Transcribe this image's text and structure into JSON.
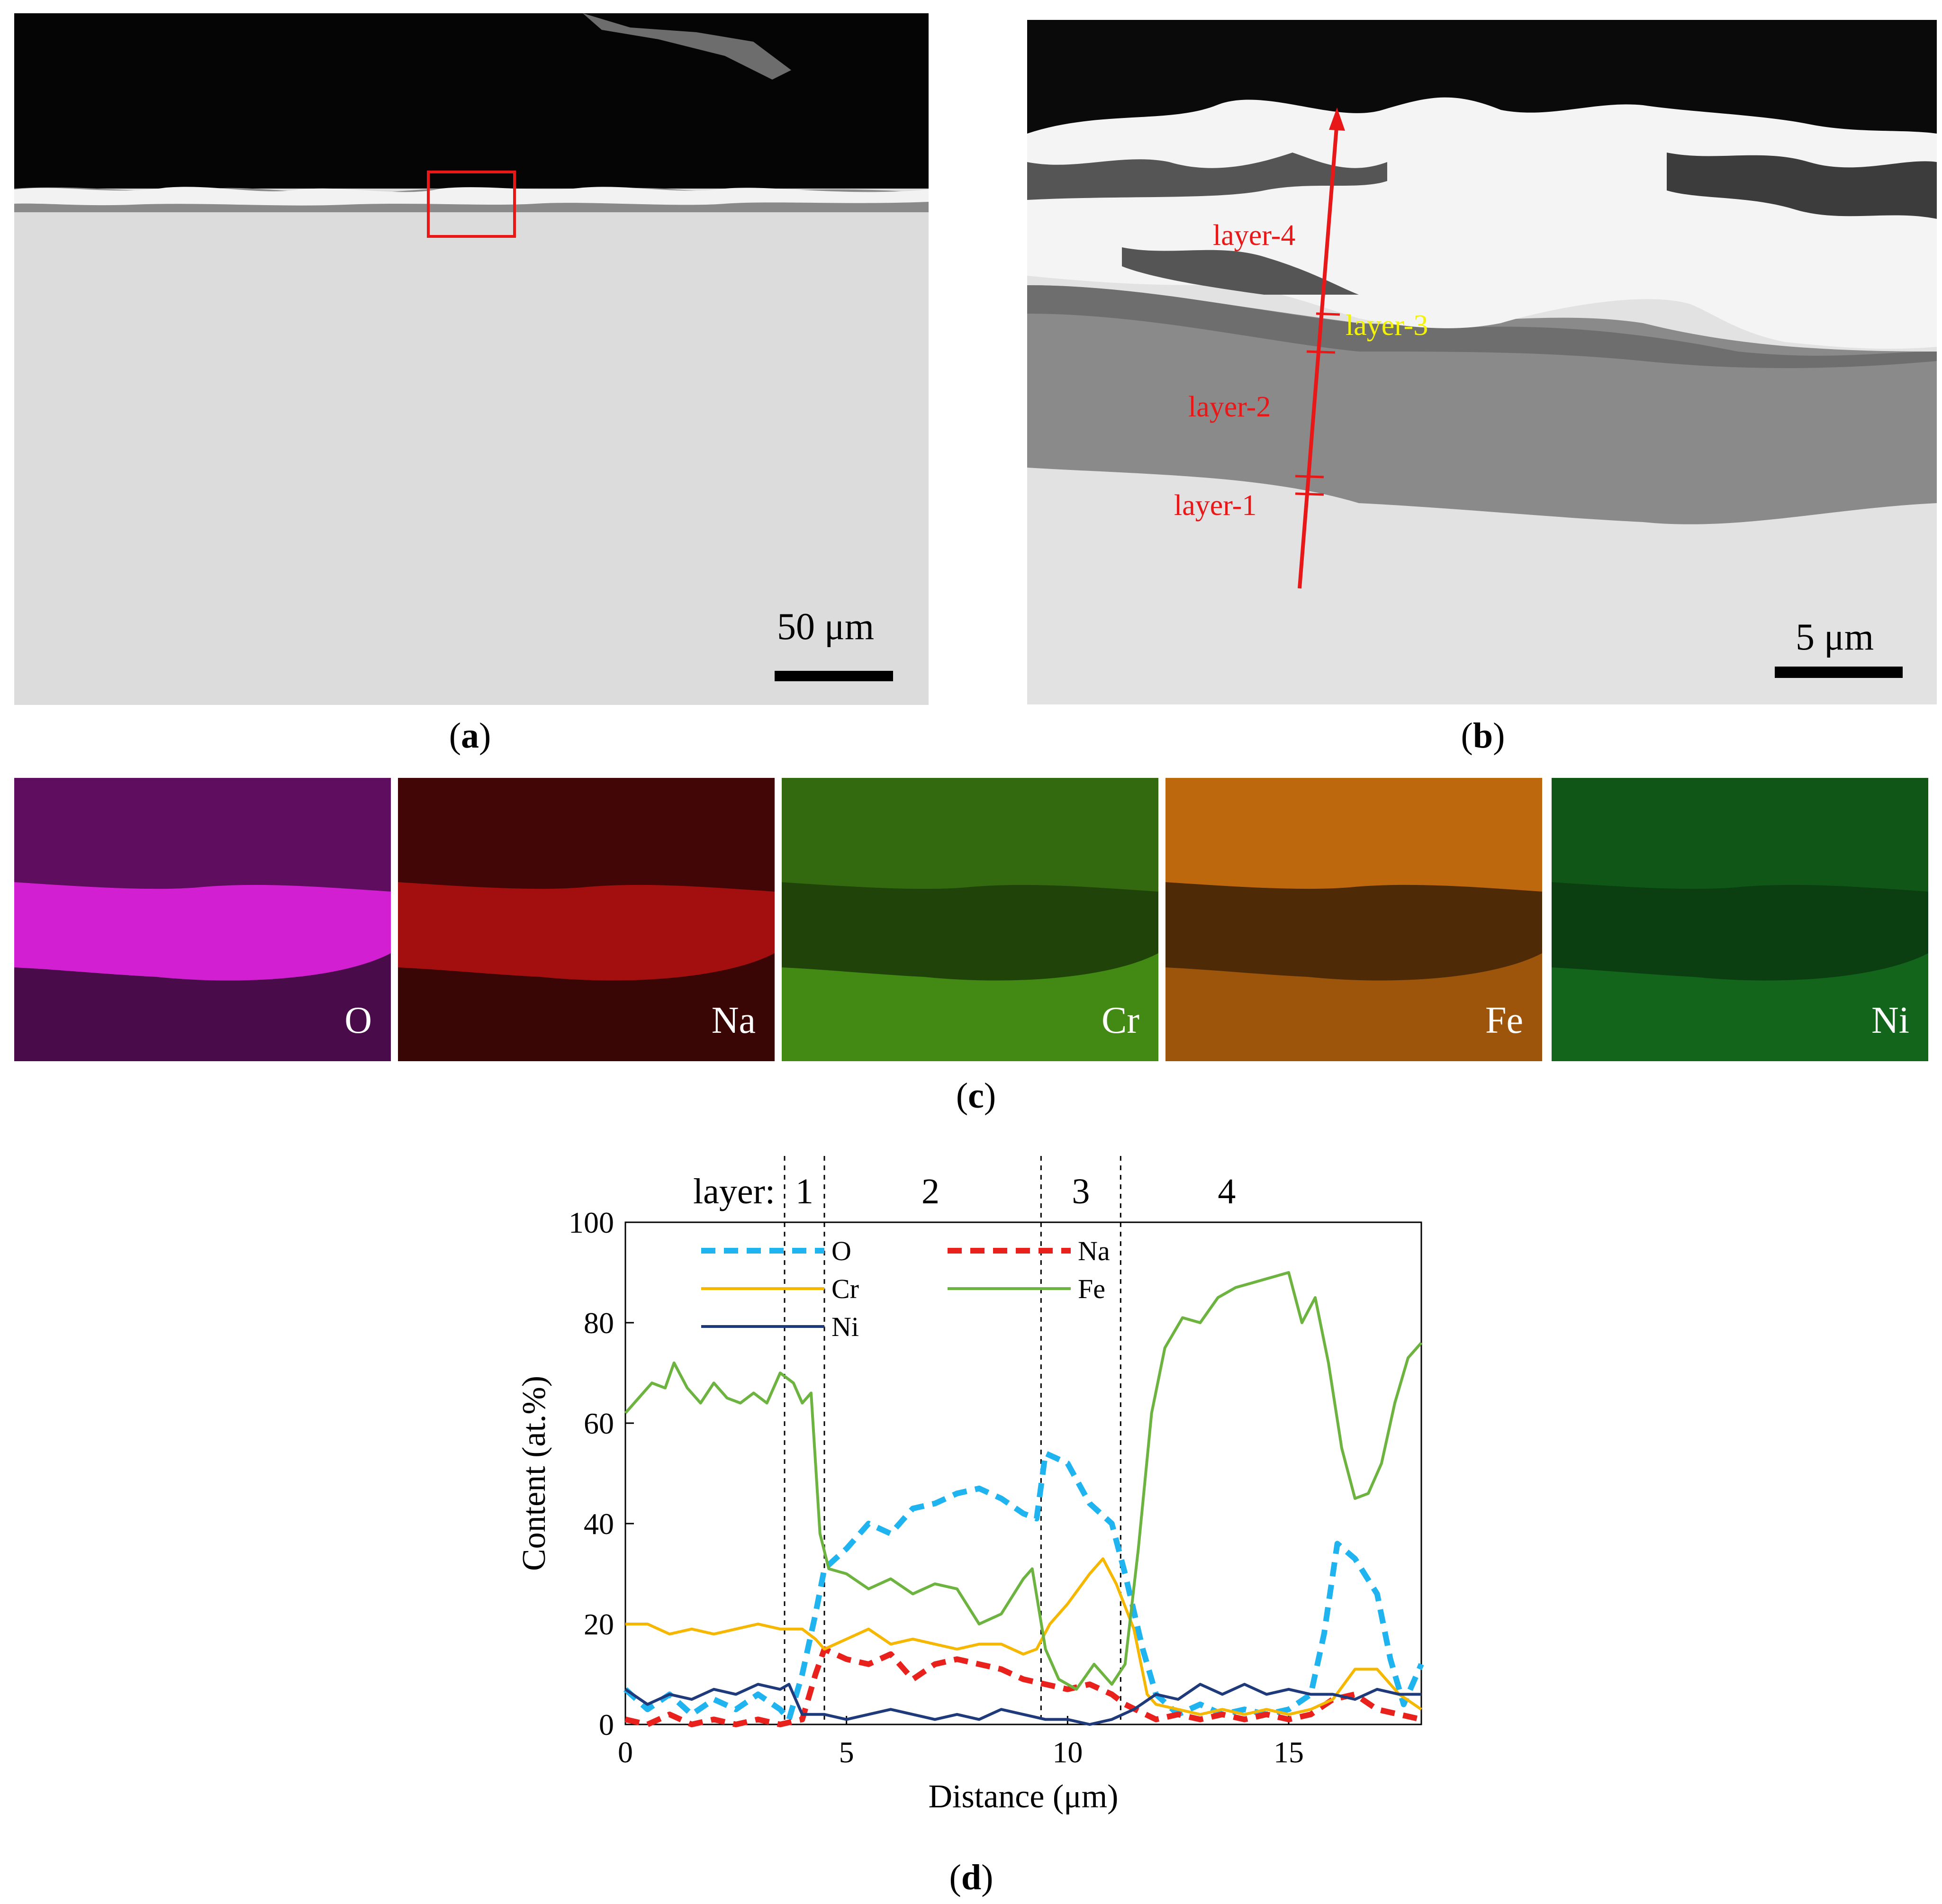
{
  "panel_a": {
    "scale_label": "50 μm",
    "caption_letter": "a"
  },
  "panel_b": {
    "scale_label": "5 μm",
    "caption_letter": "b",
    "layer_labels": [
      "layer-4",
      "layer-3",
      "layer-2",
      "layer-1"
    ]
  },
  "panel_c": {
    "caption_letter": "c",
    "maps": [
      {
        "element": "O",
        "color": "#d21fd2"
      },
      {
        "element": "Na",
        "color": "#c01010"
      },
      {
        "element": "Cr",
        "color": "#5cc01c"
      },
      {
        "element": "Fe",
        "color": "#e07a10"
      },
      {
        "element": "Ni",
        "color": "#1c9c2a"
      }
    ]
  },
  "panel_d": {
    "caption_letter": "d"
  },
  "chart_data": {
    "type": "line",
    "xlabel": "Distance (μm)",
    "ylabel": "Content (at.%)",
    "xlim": [
      0,
      18
    ],
    "ylim": [
      0,
      100
    ],
    "xticks": [
      0,
      5,
      10,
      15
    ],
    "yticks": [
      0,
      20,
      40,
      60,
      80,
      100
    ],
    "layer_prefix": "layer:",
    "layer_boundaries": [
      3.6,
      4.5,
      9.4,
      11.2
    ],
    "layer_labels": [
      {
        "label": "1",
        "x": 4.05
      },
      {
        "label": "2",
        "x": 6.9
      },
      {
        "label": "3",
        "x": 10.3
      },
      {
        "label": "4",
        "x": 13.6
      }
    ],
    "legend_placement": "top-left",
    "series": [
      {
        "name": "O",
        "color": "#1fb4f0",
        "dashed": true,
        "points": [
          [
            0,
            7
          ],
          [
            0.5,
            3
          ],
          [
            1,
            6
          ],
          [
            1.5,
            2
          ],
          [
            2,
            5
          ],
          [
            2.5,
            3
          ],
          [
            3,
            6
          ],
          [
            3.5,
            3
          ],
          [
            3.7,
            1
          ],
          [
            4,
            10
          ],
          [
            4.3,
            22
          ],
          [
            4.5,
            31
          ],
          [
            5,
            35
          ],
          [
            5.5,
            40
          ],
          [
            6,
            38
          ],
          [
            6.5,
            43
          ],
          [
            7,
            44
          ],
          [
            7.5,
            46
          ],
          [
            8,
            47
          ],
          [
            8.5,
            45
          ],
          [
            9,
            42
          ],
          [
            9.3,
            41
          ],
          [
            9.5,
            54
          ],
          [
            10,
            52
          ],
          [
            10.5,
            44
          ],
          [
            11,
            40
          ],
          [
            11.3,
            30
          ],
          [
            11.7,
            15
          ],
          [
            12,
            6
          ],
          [
            12.5,
            2
          ],
          [
            13,
            4
          ],
          [
            13.5,
            2
          ],
          [
            14,
            3
          ],
          [
            14.5,
            2
          ],
          [
            15,
            3
          ],
          [
            15.5,
            6
          ],
          [
            15.8,
            18
          ],
          [
            16.1,
            36
          ],
          [
            16.5,
            33
          ],
          [
            17,
            26
          ],
          [
            17.3,
            13
          ],
          [
            17.6,
            4
          ],
          [
            18,
            12
          ]
        ]
      },
      {
        "name": "Na",
        "color": "#e8211c",
        "dashed": true,
        "points": [
          [
            0,
            1
          ],
          [
            0.5,
            0
          ],
          [
            1,
            2
          ],
          [
            1.5,
            0
          ],
          [
            2,
            1
          ],
          [
            2.5,
            0
          ],
          [
            3,
            1
          ],
          [
            3.5,
            0
          ],
          [
            4,
            1
          ],
          [
            4.3,
            10
          ],
          [
            4.5,
            15
          ],
          [
            5,
            13
          ],
          [
            5.5,
            12
          ],
          [
            6,
            14
          ],
          [
            6.5,
            9
          ],
          [
            7,
            12
          ],
          [
            7.5,
            13
          ],
          [
            8,
            12
          ],
          [
            8.5,
            11
          ],
          [
            9,
            9
          ],
          [
            9.5,
            8
          ],
          [
            10,
            7
          ],
          [
            10.5,
            8
          ],
          [
            11,
            6
          ],
          [
            11.3,
            4
          ],
          [
            12,
            1
          ],
          [
            12.5,
            2
          ],
          [
            13,
            1
          ],
          [
            13.5,
            2
          ],
          [
            14,
            1
          ],
          [
            14.5,
            2
          ],
          [
            15,
            1
          ],
          [
            15.5,
            2
          ],
          [
            16,
            5
          ],
          [
            16.5,
            6
          ],
          [
            17,
            3
          ],
          [
            17.5,
            2
          ],
          [
            18,
            1
          ]
        ]
      },
      {
        "name": "Cr",
        "color": "#f5b700",
        "dashed": false,
        "points": [
          [
            0,
            20
          ],
          [
            0.5,
            20
          ],
          [
            1,
            18
          ],
          [
            1.5,
            19
          ],
          [
            2,
            18
          ],
          [
            2.5,
            19
          ],
          [
            3,
            20
          ],
          [
            3.5,
            19
          ],
          [
            4,
            19
          ],
          [
            4.3,
            17
          ],
          [
            4.5,
            15
          ],
          [
            5,
            17
          ],
          [
            5.5,
            19
          ],
          [
            6,
            16
          ],
          [
            6.5,
            17
          ],
          [
            7,
            16
          ],
          [
            7.5,
            15
          ],
          [
            8,
            16
          ],
          [
            8.5,
            16
          ],
          [
            9,
            14
          ],
          [
            9.3,
            15
          ],
          [
            9.6,
            20
          ],
          [
            10,
            24
          ],
          [
            10.5,
            30
          ],
          [
            10.8,
            33
          ],
          [
            11.1,
            28
          ],
          [
            11.5,
            19
          ],
          [
            11.8,
            6
          ],
          [
            12,
            4
          ],
          [
            12.5,
            3
          ],
          [
            13,
            2
          ],
          [
            13.5,
            3
          ],
          [
            14,
            2
          ],
          [
            14.5,
            3
          ],
          [
            15,
            2
          ],
          [
            15.5,
            3
          ],
          [
            16,
            5
          ],
          [
            16.5,
            11
          ],
          [
            17,
            11
          ],
          [
            17.5,
            6
          ],
          [
            18,
            3
          ]
        ]
      },
      {
        "name": "Fe",
        "color": "#6db33f",
        "dashed": false,
        "points": [
          [
            0,
            62
          ],
          [
            0.3,
            65
          ],
          [
            0.6,
            68
          ],
          [
            0.9,
            67
          ],
          [
            1.1,
            72
          ],
          [
            1.4,
            67
          ],
          [
            1.7,
            64
          ],
          [
            2,
            68
          ],
          [
            2.3,
            65
          ],
          [
            2.6,
            64
          ],
          [
            2.9,
            66
          ],
          [
            3.2,
            64
          ],
          [
            3.5,
            70
          ],
          [
            3.8,
            68
          ],
          [
            4,
            64
          ],
          [
            4.2,
            66
          ],
          [
            4.4,
            38
          ],
          [
            4.6,
            31
          ],
          [
            5,
            30
          ],
          [
            5.5,
            27
          ],
          [
            6,
            29
          ],
          [
            6.5,
            26
          ],
          [
            7,
            28
          ],
          [
            7.5,
            27
          ],
          [
            8,
            20
          ],
          [
            8.5,
            22
          ],
          [
            9,
            29
          ],
          [
            9.2,
            31
          ],
          [
            9.5,
            15
          ],
          [
            9.8,
            9
          ],
          [
            10.2,
            7
          ],
          [
            10.6,
            12
          ],
          [
            11,
            8
          ],
          [
            11.3,
            12
          ],
          [
            11.6,
            35
          ],
          [
            11.9,
            62
          ],
          [
            12.2,
            75
          ],
          [
            12.6,
            81
          ],
          [
            13,
            80
          ],
          [
            13.4,
            85
          ],
          [
            13.8,
            87
          ],
          [
            14.2,
            88
          ],
          [
            14.6,
            89
          ],
          [
            15,
            90
          ],
          [
            15.3,
            80
          ],
          [
            15.6,
            85
          ],
          [
            15.9,
            72
          ],
          [
            16.2,
            55
          ],
          [
            16.5,
            45
          ],
          [
            16.8,
            46
          ],
          [
            17.1,
            52
          ],
          [
            17.4,
            64
          ],
          [
            17.7,
            73
          ],
          [
            18,
            76
          ]
        ]
      },
      {
        "name": "Ni",
        "color": "#1f3a7a",
        "dashed": false,
        "points": [
          [
            0,
            7
          ],
          [
            0.5,
            4
          ],
          [
            1,
            6
          ],
          [
            1.5,
            5
          ],
          [
            2,
            7
          ],
          [
            2.5,
            6
          ],
          [
            3,
            8
          ],
          [
            3.5,
            7
          ],
          [
            3.7,
            8
          ],
          [
            4,
            2
          ],
          [
            4.5,
            2
          ],
          [
            5,
            1
          ],
          [
            5.5,
            2
          ],
          [
            6,
            3
          ],
          [
            6.5,
            2
          ],
          [
            7,
            1
          ],
          [
            7.5,
            2
          ],
          [
            8,
            1
          ],
          [
            8.5,
            3
          ],
          [
            9,
            2
          ],
          [
            9.5,
            1
          ],
          [
            10,
            1
          ],
          [
            10.5,
            0
          ],
          [
            11,
            1
          ],
          [
            11.5,
            3
          ],
          [
            12,
            6
          ],
          [
            12.5,
            5
          ],
          [
            13,
            8
          ],
          [
            13.5,
            6
          ],
          [
            14,
            8
          ],
          [
            14.5,
            6
          ],
          [
            15,
            7
          ],
          [
            15.5,
            6
          ],
          [
            16,
            6
          ],
          [
            16.5,
            5
          ],
          [
            17,
            7
          ],
          [
            17.5,
            6
          ],
          [
            18,
            6
          ]
        ]
      }
    ]
  }
}
